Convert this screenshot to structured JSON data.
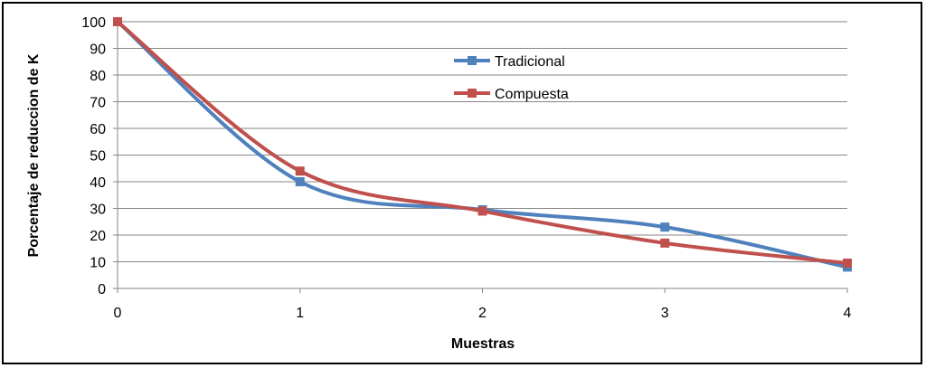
{
  "chart_data": {
    "type": "line",
    "title": "",
    "xlabel": "Muestras",
    "ylabel": "Porcentaje de reduccion de K",
    "x": [
      0,
      1,
      2,
      3,
      4
    ],
    "x_ticks": [
      "0",
      "1",
      "2",
      "3",
      "4"
    ],
    "y_ticks": [
      "0",
      "10",
      "20",
      "30",
      "40",
      "50",
      "60",
      "70",
      "80",
      "90",
      "100"
    ],
    "ylim": [
      0,
      100
    ],
    "xlim": [
      0,
      4
    ],
    "grid": "horizontal",
    "legend_position": "top-center",
    "smooth": true,
    "series": [
      {
        "name": "Tradicional",
        "color": "#4F81BD",
        "values": [
          100,
          40,
          29.5,
          23,
          8
        ]
      },
      {
        "name": "Compuesta",
        "color": "#C0504D",
        "values": [
          100,
          44,
          29,
          17,
          9.5
        ]
      }
    ]
  }
}
